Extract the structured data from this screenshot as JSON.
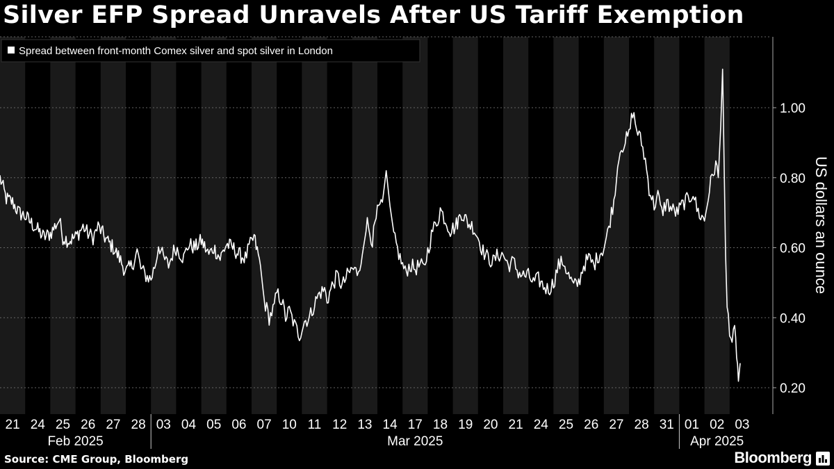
{
  "title": "Silver EFP Spread Unravels After US Tariff Exemption",
  "source": "Source: CME Group, Bloomberg",
  "brand": "Bloomberg",
  "brand_icon": "bloomberg-terminal-icon",
  "colors": {
    "background": "#000000",
    "band_light": "#1a1a1a",
    "band_dark": "#000000",
    "series": "#ffffff",
    "grid": "#666666"
  },
  "chart_data": {
    "type": "line",
    "title": "Silver EFP Spread Unravels After US Tariff Exemption",
    "ylabel": "US dollars an ounce",
    "xlabel": "",
    "ylim": [
      0.12,
      1.2
    ],
    "yticks": [
      "0.20",
      "0.40",
      "0.60",
      "0.80",
      "1.00"
    ],
    "ytick_values": [
      0.2,
      0.4,
      0.6,
      0.8,
      1.0
    ],
    "grid": "horizontal dotted",
    "legend_position": "top-left",
    "x_days": [
      "21",
      "24",
      "25",
      "26",
      "27",
      "28",
      "03",
      "04",
      "05",
      "06",
      "07",
      "10",
      "11",
      "12",
      "13",
      "14",
      "17",
      "18",
      "19",
      "20",
      "21",
      "24",
      "25",
      "26",
      "27",
      "28",
      "31",
      "01",
      "02",
      "03"
    ],
    "x_months": [
      {
        "label": "Feb 2025",
        "start": 0,
        "end": 5
      },
      {
        "label": "Mar 2025",
        "start": 6,
        "end": 26
      },
      {
        "label": "Apr 2025",
        "start": 27,
        "end": 29
      }
    ],
    "series": [
      {
        "name": "Spread between front-month Comex silver and spot silver in London",
        "anchors": [
          [
            0.0,
            0.8
          ],
          [
            0.25,
            0.74
          ],
          [
            0.5,
            0.73
          ],
          [
            0.75,
            0.7
          ],
          [
            1.0,
            0.69
          ],
          [
            1.25,
            0.67
          ],
          [
            1.5,
            0.65
          ],
          [
            1.75,
            0.63
          ],
          [
            2.0,
            0.64
          ],
          [
            2.35,
            0.68
          ],
          [
            2.5,
            0.63
          ],
          [
            2.75,
            0.62
          ],
          [
            3.0,
            0.63
          ],
          [
            3.3,
            0.66
          ],
          [
            3.5,
            0.64
          ],
          [
            3.7,
            0.63
          ],
          [
            3.9,
            0.66
          ],
          [
            4.0,
            0.65
          ],
          [
            4.25,
            0.62
          ],
          [
            4.5,
            0.6
          ],
          [
            4.75,
            0.57
          ],
          [
            5.0,
            0.53
          ],
          [
            5.25,
            0.55
          ],
          [
            5.45,
            0.59
          ],
          [
            5.6,
            0.54
          ],
          [
            5.8,
            0.52
          ],
          [
            6.0,
            0.51
          ],
          [
            6.2,
            0.56
          ],
          [
            6.3,
            0.61
          ],
          [
            6.5,
            0.57
          ],
          [
            6.7,
            0.55
          ],
          [
            6.9,
            0.59
          ],
          [
            7.0,
            0.6
          ],
          [
            7.3,
            0.57
          ],
          [
            7.5,
            0.61
          ],
          [
            7.75,
            0.6
          ],
          [
            8.0,
            0.62
          ],
          [
            8.3,
            0.58
          ],
          [
            8.5,
            0.6
          ],
          [
            8.75,
            0.57
          ],
          [
            9.0,
            0.61
          ],
          [
            9.25,
            0.6
          ],
          [
            9.5,
            0.58
          ],
          [
            9.75,
            0.57
          ],
          [
            9.9,
            0.6
          ],
          [
            10.1,
            0.63
          ],
          [
            10.35,
            0.55
          ],
          [
            10.5,
            0.45
          ],
          [
            10.7,
            0.4
          ],
          [
            10.9,
            0.43
          ],
          [
            11.0,
            0.47
          ],
          [
            11.2,
            0.45
          ],
          [
            11.35,
            0.4
          ],
          [
            11.5,
            0.42
          ],
          [
            11.7,
            0.38
          ],
          [
            11.9,
            0.35
          ],
          [
            12.1,
            0.39
          ],
          [
            12.3,
            0.4
          ],
          [
            12.5,
            0.44
          ],
          [
            12.7,
            0.47
          ],
          [
            12.9,
            0.48
          ],
          [
            13.0,
            0.45
          ],
          [
            13.2,
            0.49
          ],
          [
            13.4,
            0.52
          ],
          [
            13.6,
            0.49
          ],
          [
            13.8,
            0.52
          ],
          [
            14.0,
            0.54
          ],
          [
            14.2,
            0.53
          ],
          [
            14.4,
            0.58
          ],
          [
            14.6,
            0.67
          ],
          [
            14.8,
            0.62
          ],
          [
            15.0,
            0.7
          ],
          [
            15.2,
            0.73
          ],
          [
            15.35,
            0.82
          ],
          [
            15.5,
            0.72
          ],
          [
            15.7,
            0.62
          ],
          [
            15.9,
            0.57
          ],
          [
            16.1,
            0.53
          ],
          [
            16.3,
            0.55
          ],
          [
            16.5,
            0.54
          ],
          [
            16.7,
            0.55
          ],
          [
            16.85,
            0.54
          ],
          [
            17.0,
            0.59
          ],
          [
            17.2,
            0.65
          ],
          [
            17.4,
            0.68
          ],
          [
            17.5,
            0.71
          ],
          [
            17.7,
            0.68
          ],
          [
            17.9,
            0.65
          ],
          [
            18.1,
            0.66
          ],
          [
            18.35,
            0.7
          ],
          [
            18.6,
            0.67
          ],
          [
            18.8,
            0.66
          ],
          [
            19.0,
            0.63
          ],
          [
            19.2,
            0.59
          ],
          [
            19.4,
            0.57
          ],
          [
            19.6,
            0.56
          ],
          [
            19.8,
            0.58
          ],
          [
            20.0,
            0.58
          ],
          [
            20.2,
            0.55
          ],
          [
            20.4,
            0.56
          ],
          [
            20.6,
            0.53
          ],
          [
            20.8,
            0.52
          ],
          [
            21.0,
            0.52
          ],
          [
            21.2,
            0.5
          ],
          [
            21.4,
            0.51
          ],
          [
            21.6,
            0.49
          ],
          [
            21.8,
            0.48
          ],
          [
            22.0,
            0.5
          ],
          [
            22.2,
            0.55
          ],
          [
            22.4,
            0.56
          ],
          [
            22.6,
            0.52
          ],
          [
            22.8,
            0.49
          ],
          [
            23.0,
            0.5
          ],
          [
            23.2,
            0.55
          ],
          [
            23.4,
            0.57
          ],
          [
            23.6,
            0.55
          ],
          [
            23.8,
            0.58
          ],
          [
            24.0,
            0.6
          ],
          [
            24.15,
            0.64
          ],
          [
            24.3,
            0.7
          ],
          [
            24.45,
            0.75
          ],
          [
            24.6,
            0.87
          ],
          [
            24.8,
            0.9
          ],
          [
            25.0,
            0.92
          ],
          [
            25.15,
            0.99
          ],
          [
            25.3,
            0.94
          ],
          [
            25.5,
            0.9
          ],
          [
            25.65,
            0.85
          ],
          [
            25.8,
            0.77
          ],
          [
            26.0,
            0.72
          ],
          [
            26.15,
            0.75
          ],
          [
            26.3,
            0.7
          ],
          [
            26.5,
            0.73
          ],
          [
            26.7,
            0.71
          ],
          [
            26.9,
            0.7
          ],
          [
            27.0,
            0.71
          ],
          [
            27.2,
            0.73
          ],
          [
            27.4,
            0.74
          ],
          [
            27.55,
            0.76
          ],
          [
            27.7,
            0.71
          ],
          [
            27.85,
            0.69
          ],
          [
            28.0,
            0.68
          ],
          [
            28.1,
            0.72
          ],
          [
            28.2,
            0.77
          ],
          [
            28.3,
            0.8
          ],
          [
            28.45,
            0.84
          ],
          [
            28.55,
            0.8
          ],
          [
            28.65,
            0.95
          ],
          [
            28.72,
            1.11
          ],
          [
            28.78,
            0.85
          ],
          [
            28.84,
            0.58
          ],
          [
            28.9,
            0.43
          ],
          [
            29.0,
            0.37
          ],
          [
            29.1,
            0.33
          ],
          [
            29.2,
            0.36
          ],
          [
            29.28,
            0.3
          ],
          [
            29.35,
            0.22
          ],
          [
            29.42,
            0.27
          ]
        ]
      }
    ]
  }
}
